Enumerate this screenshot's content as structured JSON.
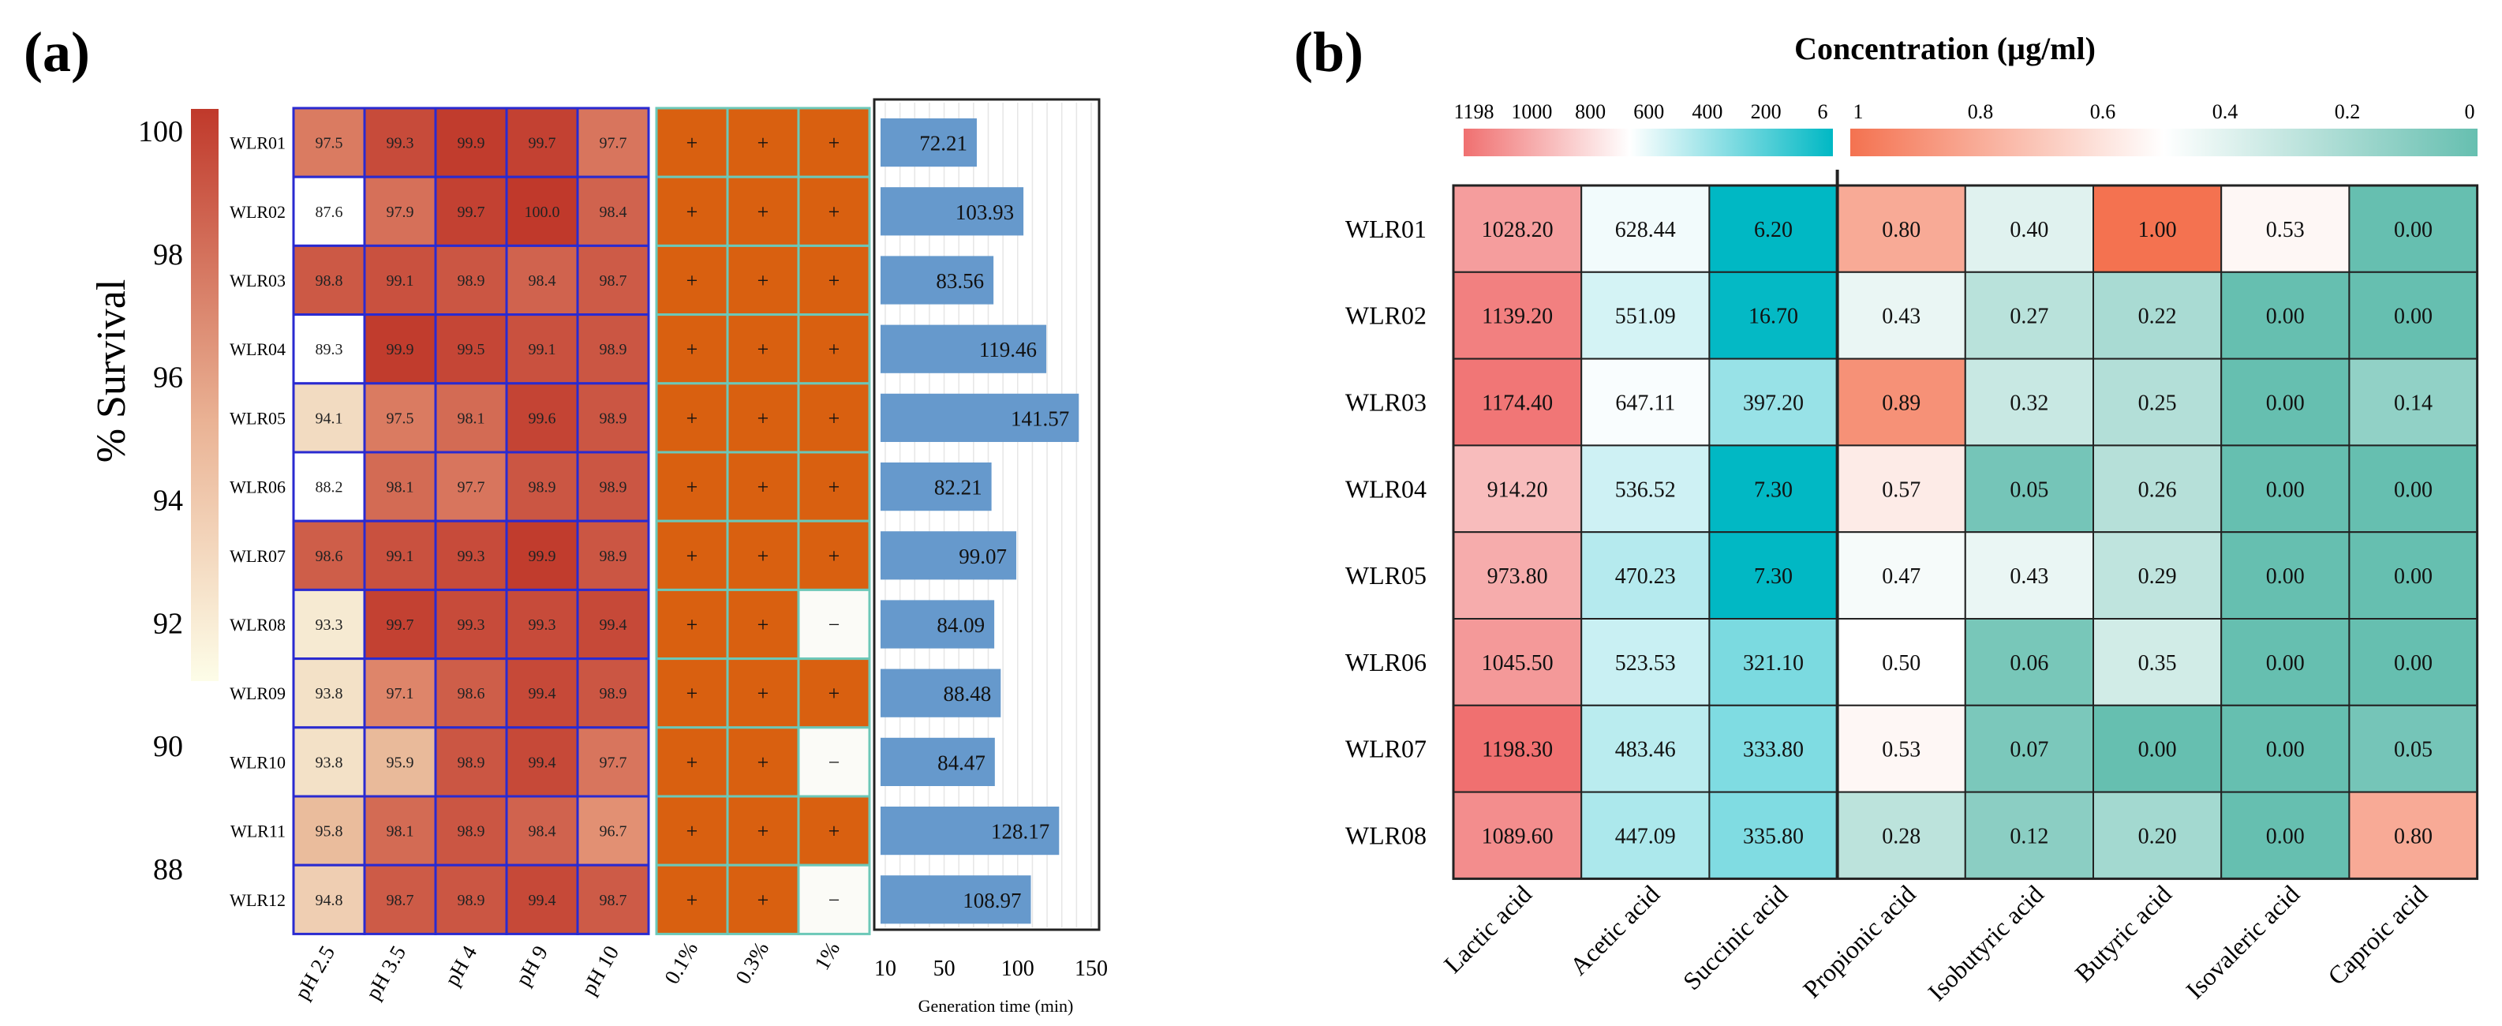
{
  "panel_a_label": "(a)",
  "panel_b_label": "(b)",
  "colors": {
    "survival_high": "#c0392b",
    "survival_low": "#fdfde8",
    "bile_positive": "#d96010",
    "bile_negative": "#fbfbf7",
    "bar": "#6699cc",
    "conc_high": "#f07070",
    "conc_mid": "#ffffff",
    "conc_low": "#00b8c4",
    "ratio_high": "#f47250",
    "ratio_low": "#66bfb0"
  },
  "chart_data": [
    {
      "id": "survival",
      "type": "heatmap",
      "title": "",
      "colorbar_label": "% Survival",
      "colorbar_ticks": [
        "100",
        "98",
        "96",
        "94",
        "92",
        "90",
        "88"
      ],
      "colorbar_range": [
        88,
        100
      ],
      "rows": [
        "WLR01",
        "WLR02",
        "WLR03",
        "WLR04",
        "WLR05",
        "WLR06",
        "WLR07",
        "WLR08",
        "WLR09",
        "WLR10",
        "WLR11",
        "WLR12"
      ],
      "columns": [
        "pH 2.5",
        "pH 3.5",
        "pH 4",
        "pH 9",
        "pH 10"
      ],
      "values": [
        [
          "97.5",
          "99.3",
          "99.9",
          "99.7",
          "97.7"
        ],
        [
          "87.6",
          "97.9",
          "99.7",
          "100.0",
          "98.4"
        ],
        [
          "98.8",
          "99.1",
          "98.9",
          "98.4",
          "98.7"
        ],
        [
          "89.3",
          "99.9",
          "99.5",
          "99.1",
          "98.9"
        ],
        [
          "94.1",
          "97.5",
          "98.1",
          "99.6",
          "98.9"
        ],
        [
          "88.2",
          "98.1",
          "97.7",
          "98.9",
          "98.9"
        ],
        [
          "98.6",
          "99.1",
          "99.3",
          "99.9",
          "98.9"
        ],
        [
          "93.3",
          "99.7",
          "99.3",
          "99.3",
          "99.4"
        ],
        [
          "93.8",
          "97.1",
          "98.6",
          "99.4",
          "98.9"
        ],
        [
          "93.8",
          "95.9",
          "98.9",
          "99.4",
          "97.7"
        ],
        [
          "95.8",
          "98.1",
          "98.9",
          "98.4",
          "96.7"
        ],
        [
          "94.8",
          "98.7",
          "98.9",
          "99.4",
          "98.7"
        ]
      ]
    },
    {
      "id": "bile",
      "type": "table",
      "columns": [
        "0.1%",
        "0.3%",
        "1%"
      ],
      "values": [
        [
          "+",
          "+",
          "+"
        ],
        [
          "+",
          "+",
          "+"
        ],
        [
          "+",
          "+",
          "+"
        ],
        [
          "+",
          "+",
          "+"
        ],
        [
          "+",
          "+",
          "+"
        ],
        [
          "+",
          "+",
          "+"
        ],
        [
          "+",
          "+",
          "+"
        ],
        [
          "+",
          "+",
          "−"
        ],
        [
          "+",
          "+",
          "+"
        ],
        [
          "+",
          "+",
          "−"
        ],
        [
          "+",
          "+",
          "+"
        ],
        [
          "+",
          "+",
          "−"
        ]
      ]
    },
    {
      "id": "generation",
      "type": "bar",
      "orientation": "horizontal",
      "categories": [
        "WLR01",
        "WLR02",
        "WLR03",
        "WLR04",
        "WLR05",
        "WLR06",
        "WLR07",
        "WLR08",
        "WLR09",
        "WLR10",
        "WLR11",
        "WLR12"
      ],
      "values": [
        72.21,
        103.93,
        83.56,
        119.46,
        141.57,
        82.21,
        99.07,
        84.09,
        88.48,
        84.47,
        128.17,
        108.97
      ],
      "value_labels": [
        "72.21",
        "103.93",
        "83.56",
        "119.46",
        "141.57",
        "82.21",
        "99.07",
        "84.09",
        "88.48",
        "84.47",
        "128.17",
        "108.97"
      ],
      "xlabel": "Generation time (min)",
      "xticks": [
        "10",
        "50",
        "100",
        "150"
      ],
      "xlim": [
        10,
        150
      ]
    },
    {
      "id": "concentration",
      "type": "heatmap",
      "title": "Concentration (µg/ml)",
      "rows": [
        "WLR01",
        "WLR02",
        "WLR03",
        "WLR04",
        "WLR05",
        "WLR06",
        "WLR07",
        "WLR08"
      ],
      "columns": [
        "Lactic acid",
        "Acetic acid",
        "Succinic acid",
        "Propionic acid",
        "Isobutyric acid",
        "Butyric acid",
        "Isovaleric acid",
        "Caproic acid"
      ],
      "values": [
        [
          "1028.20",
          "628.44",
          "6.20",
          "0.80",
          "0.40",
          "1.00",
          "0.53",
          "0.00"
        ],
        [
          "1139.20",
          "551.09",
          "16.70",
          "0.43",
          "0.27",
          "0.22",
          "0.00",
          "0.00"
        ],
        [
          "1174.40",
          "647.11",
          "397.20",
          "0.89",
          "0.32",
          "0.25",
          "0.00",
          "0.14"
        ],
        [
          "914.20",
          "536.52",
          "7.30",
          "0.57",
          "0.05",
          "0.26",
          "0.00",
          "0.00"
        ],
        [
          "973.80",
          "470.23",
          "7.30",
          "0.47",
          "0.43",
          "0.29",
          "0.00",
          "0.00"
        ],
        [
          "1045.50",
          "523.53",
          "321.10",
          "0.50",
          "0.06",
          "0.35",
          "0.00",
          "0.00"
        ],
        [
          "1198.30",
          "483.46",
          "333.80",
          "0.53",
          "0.07",
          "0.00",
          "0.00",
          "0.05"
        ],
        [
          "1089.60",
          "447.09",
          "335.80",
          "0.28",
          "0.12",
          "0.20",
          "0.00",
          "0.80"
        ]
      ],
      "scale1_ticks": [
        "1198",
        "1000",
        "800",
        "600",
        "400",
        "200",
        "6"
      ],
      "scale1_range": [
        1198,
        6
      ],
      "scale2_ticks": [
        "1",
        "0.8",
        "0.6",
        "0.4",
        "0.2",
        "0"
      ],
      "scale2_range": [
        1,
        0
      ]
    }
  ]
}
